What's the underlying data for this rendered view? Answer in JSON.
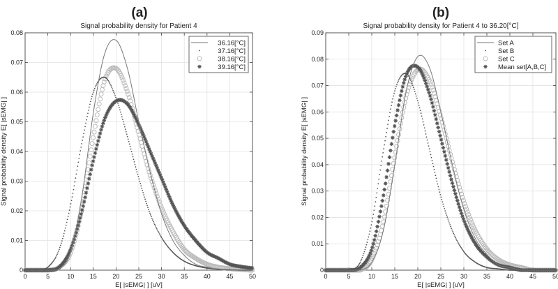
{
  "chart_data": [
    {
      "type": "line",
      "panel_label": "(a)",
      "title": "Signal probability density for Patient 4",
      "xlabel": "E[ |sEMG| ] [uV]",
      "ylabel": "Signal probability density E[ |sEMG| ]",
      "xlim": [
        0,
        50
      ],
      "ylim": [
        0,
        0.08
      ],
      "xticks": [
        "0",
        "5",
        "10",
        "15",
        "20",
        "25",
        "30",
        "35",
        "40",
        "45",
        "50"
      ],
      "yticks": [
        "0",
        "0.01",
        "0.02",
        "0.03",
        "0.04",
        "0.05",
        "0.06",
        "0.07",
        "0.08"
      ],
      "grid": true,
      "legend_position": "top-right",
      "x": [
        0,
        2.5,
        5,
        7.5,
        10,
        12.5,
        15,
        17.5,
        20,
        22.5,
        25,
        27.5,
        30,
        32.5,
        35,
        37.5,
        40,
        42.5,
        45,
        47.5,
        50
      ],
      "series": [
        {
          "name": "36.16[°C]",
          "marker": "line",
          "color": "#777777",
          "values": [
            0,
            0,
            0,
            0.0005,
            0.006,
            0.025,
            0.053,
            0.073,
            0.0775,
            0.068,
            0.05,
            0.033,
            0.019,
            0.01,
            0.005,
            0.002,
            0.001,
            0.0003,
            0,
            0,
            0
          ]
        },
        {
          "name": "37.16[°C]",
          "marker": "dot",
          "color": "#555555",
          "values": [
            0,
            0,
            0.001,
            0.007,
            0.022,
            0.043,
            0.06,
            0.065,
            0.058,
            0.045,
            0.031,
            0.019,
            0.011,
            0.006,
            0.003,
            0.0015,
            0.0007,
            0.0003,
            0.0001,
            0,
            0
          ]
        },
        {
          "name": "38.16[°C]",
          "marker": "circle",
          "color": "#bbbbbb",
          "values": [
            0,
            0,
            0,
            0.001,
            0.006,
            0.021,
            0.045,
            0.064,
            0.068,
            0.06,
            0.046,
            0.032,
            0.021,
            0.013,
            0.007,
            0.004,
            0.002,
            0.001,
            0.0005,
            0.0002,
            0
          ]
        },
        {
          "name": "39.16[°C]",
          "marker": "star",
          "color": "#555555",
          "values": [
            0,
            0,
            0,
            0.001,
            0.007,
            0.02,
            0.037,
            0.051,
            0.057,
            0.056,
            0.049,
            0.04,
            0.031,
            0.022,
            0.015,
            0.01,
            0.006,
            0.004,
            0.002,
            0.0012,
            0.0007
          ]
        }
      ]
    },
    {
      "type": "line",
      "panel_label": "(b)",
      "title": "Signal probability density for Patient 4 to 36.20[°C]",
      "xlabel": "E[ |sEMG| ] [uV]",
      "ylabel": "Signal probability density E[ |sEMG| ]",
      "xlim": [
        0,
        50
      ],
      "ylim": [
        0,
        0.09
      ],
      "xticks": [
        "0",
        "5",
        "10",
        "15",
        "20",
        "25",
        "30",
        "35",
        "40",
        "45",
        "50"
      ],
      "yticks": [
        "0",
        "0.01",
        "0.02",
        "0.03",
        "0.04",
        "0.05",
        "0.06",
        "0.07",
        "0.08",
        "0.09"
      ],
      "grid": true,
      "legend_position": "top-right",
      "x": [
        0,
        2.5,
        5,
        7.5,
        10,
        12.5,
        15,
        17.5,
        20,
        22.5,
        25,
        27.5,
        30,
        32.5,
        35,
        37.5,
        40,
        42.5,
        45,
        47.5,
        50
      ],
      "series": [
        {
          "name": "Set A",
          "marker": "line",
          "color": "#777777",
          "values": [
            0,
            0,
            0,
            0,
            0.003,
            0.015,
            0.04,
            0.068,
            0.081,
            0.077,
            0.06,
            0.04,
            0.023,
            0.012,
            0.006,
            0.002,
            0.001,
            0,
            0,
            0,
            0
          ]
        },
        {
          "name": "Set B",
          "marker": "dot",
          "color": "#555555",
          "values": [
            0,
            0,
            0,
            0.003,
            0.018,
            0.045,
            0.068,
            0.0745,
            0.064,
            0.046,
            0.028,
            0.015,
            0.007,
            0.003,
            0.001,
            0.0005,
            0,
            0,
            0,
            0,
            0
          ]
        },
        {
          "name": "Set C",
          "marker": "circle",
          "color": "#bbbbbb",
          "values": [
            0,
            0,
            0,
            0,
            0.004,
            0.018,
            0.043,
            0.066,
            0.076,
            0.072,
            0.058,
            0.041,
            0.026,
            0.015,
            0.008,
            0.004,
            0.002,
            0.001,
            0,
            0,
            0
          ]
        },
        {
          "name": "Mean set[A,B,C]",
          "marker": "star",
          "color": "#555555",
          "values": [
            0,
            0,
            0,
            0.001,
            0.008,
            0.028,
            0.055,
            0.074,
            0.077,
            0.067,
            0.05,
            0.033,
            0.019,
            0.01,
            0.005,
            0.002,
            0.001,
            0,
            0,
            0,
            0
          ]
        }
      ]
    }
  ]
}
